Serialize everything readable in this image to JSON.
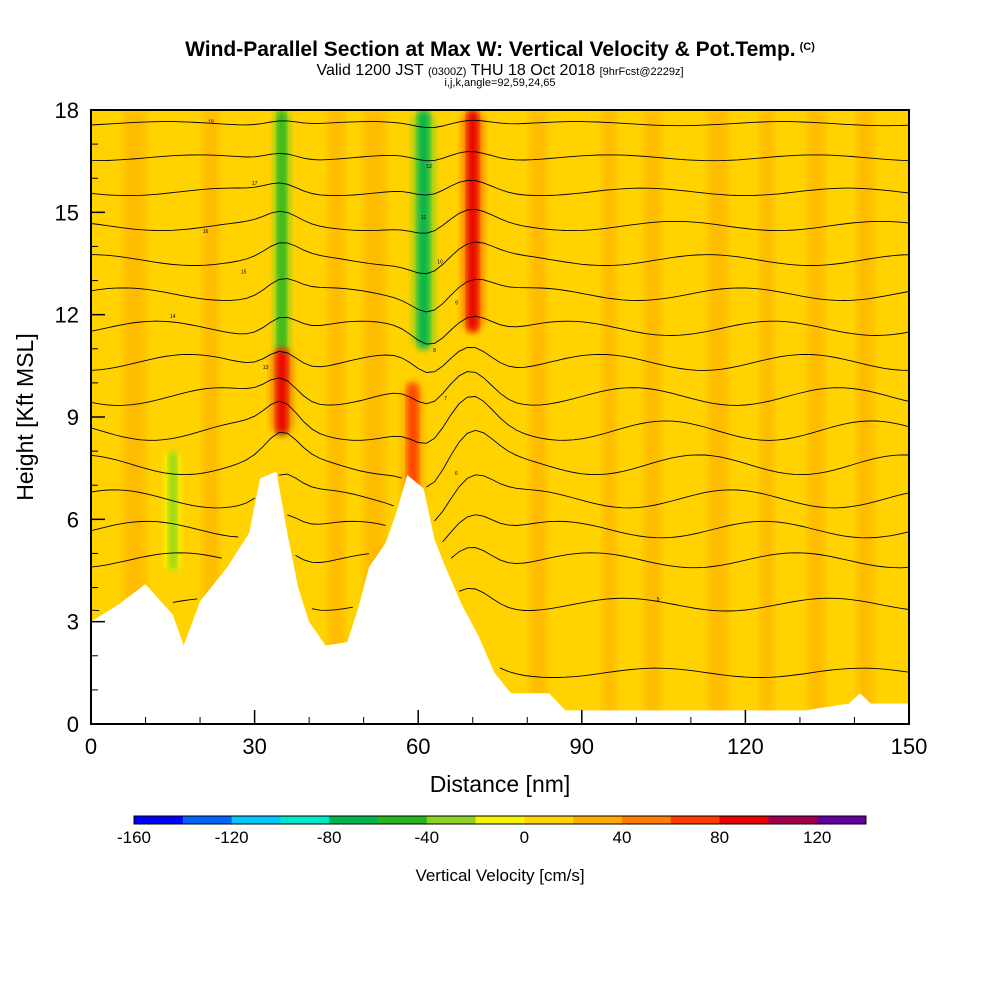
{
  "header": {
    "title": "Wind-Parallel Section at Max W: Vertical Velocity & Pot.Temp.",
    "copyright": "(C)",
    "valid_a": "Valid 1200 JST",
    "valid_utc": "(0300Z)",
    "valid_b": "THU 18 Oct 2018",
    "forecast": "[9hrFcst@2229z]",
    "indices": "i,j,k,angle=92,59,24,65"
  },
  "chart_data": {
    "type": "heatmap",
    "title": "Wind-Parallel Section at Max W: Vertical Velocity & Pot.Temp.",
    "xlabel": "Distance [nm]",
    "ylabel": "Height [Kft MSL]",
    "xlim": [
      0,
      150
    ],
    "ylim": [
      0,
      18
    ],
    "x_ticks": [
      0,
      30,
      60,
      90,
      120,
      150
    ],
    "y_ticks": [
      0,
      3,
      6,
      9,
      12,
      15,
      18
    ],
    "colorbar": {
      "label": "Vertical Velocity [cm/s]",
      "tick_values": [
        -160,
        -120,
        -80,
        -40,
        0,
        40,
        80,
        120
      ],
      "bounds": [
        -160,
        -140,
        -120,
        -100,
        -80,
        -60,
        -40,
        -20,
        0,
        20,
        40,
        60,
        80,
        100,
        120,
        140
      ],
      "colors": [
        "#0000ff",
        "#0064ff",
        "#00c8ff",
        "#00e6c8",
        "#00b450",
        "#28b41e",
        "#8cd21e",
        "#f5f500",
        "#ffd200",
        "#ffaa00",
        "#ff7d00",
        "#ff3c00",
        "#e60000",
        "#a00050",
        "#6400a0"
      ]
    },
    "terrain_kft": [
      [
        0,
        3.0
      ],
      [
        5,
        3.5
      ],
      [
        10,
        4.1
      ],
      [
        15,
        3.2
      ],
      [
        17,
        2.3
      ],
      [
        20,
        3.6
      ],
      [
        25,
        4.6
      ],
      [
        29,
        5.6
      ],
      [
        31,
        7.2
      ],
      [
        34,
        7.4
      ],
      [
        36,
        5.6
      ],
      [
        38,
        4.0
      ],
      [
        40,
        3.0
      ],
      [
        43,
        2.3
      ],
      [
        47,
        2.4
      ],
      [
        49,
        3.4
      ],
      [
        51,
        4.6
      ],
      [
        54,
        5.3
      ],
      [
        56,
        6.2
      ],
      [
        58,
        7.3
      ],
      [
        61,
        6.9
      ],
      [
        63,
        5.4
      ],
      [
        65,
        4.6
      ],
      [
        68,
        3.5
      ],
      [
        71,
        2.6
      ],
      [
        74,
        1.5
      ],
      [
        77,
        0.9
      ],
      [
        84,
        0.9
      ],
      [
        87,
        0.4
      ],
      [
        131,
        0.4
      ],
      [
        139,
        0.6
      ],
      [
        141,
        0.9
      ],
      [
        143,
        0.6
      ],
      [
        150,
        0.6
      ]
    ],
    "w_features": [
      {
        "x": 35,
        "ylo": 8.5,
        "yhi": 18,
        "w_cm_s": -50
      },
      {
        "x": 61,
        "ylo": 11,
        "yhi": 18,
        "w_cm_s": -70
      },
      {
        "x": 70,
        "ylo": 11.5,
        "yhi": 18,
        "w_cm_s": 90
      },
      {
        "x": 35,
        "ylo": 8.5,
        "yhi": 11,
        "w_cm_s": 80
      },
      {
        "x": 59,
        "ylo": 6.5,
        "yhi": 10,
        "w_cm_s": 60
      },
      {
        "x": 15,
        "ylo": 4.5,
        "yhi": 8,
        "w_cm_s": -30
      }
    ],
    "isentrope_labels": [
      "18",
      "17",
      "16",
      "15",
      "14",
      "13",
      "12",
      "11",
      "10",
      "9",
      "8",
      "7",
      "6",
      "5"
    ]
  }
}
